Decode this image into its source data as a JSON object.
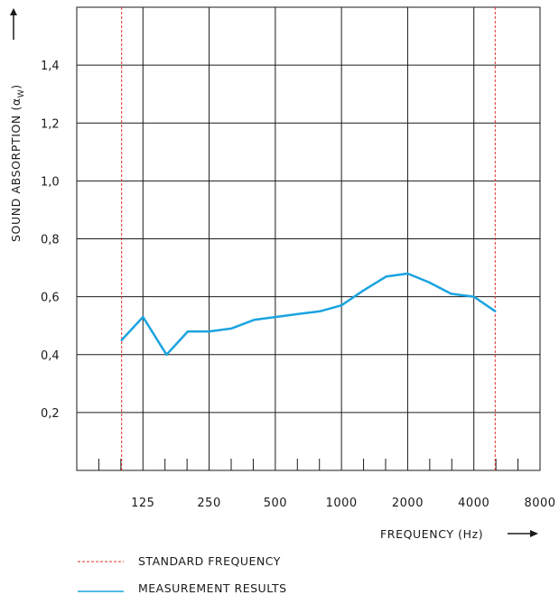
{
  "chart_data": {
    "type": "line",
    "xlabel": "FREQUENCY (Hz)",
    "ylabel": "SOUND ABSORPTION (α",
    "ylabel_sub": "W",
    "ylabel_close": ")",
    "x_scale": "log2",
    "x_tick_labels": [
      "125",
      "250",
      "500",
      "1000",
      "2000",
      "4000",
      "8000"
    ],
    "x_ticks": [
      125,
      250,
      500,
      1000,
      2000,
      4000,
      8000
    ],
    "xlim": [
      62.5,
      8000
    ],
    "y_tick_labels": [
      "0,2",
      "0,4",
      "0,6",
      "0,8",
      "1,0",
      "1,2",
      "1,4"
    ],
    "y_ticks": [
      0.2,
      0.4,
      0.6,
      0.8,
      1.0,
      1.2,
      1.4
    ],
    "ylim": [
      0,
      1.6
    ],
    "grid": true,
    "series": [
      {
        "name": "MEASUREMENT RESULTS",
        "color": "#1aa3e0",
        "x": [
          100,
          125,
          160,
          200,
          250,
          315,
          400,
          500,
          630,
          800,
          1000,
          1250,
          1600,
          2000,
          2500,
          3150,
          4000,
          5000
        ],
        "y": [
          0.45,
          0.53,
          0.4,
          0.48,
          0.48,
          0.49,
          0.52,
          0.53,
          0.54,
          0.55,
          0.57,
          0.62,
          0.67,
          0.68,
          0.65,
          0.61,
          0.6,
          0.55
        ]
      }
    ],
    "reference_lines": {
      "name": "STANDARD FREQUENCY",
      "color": "#e0302a",
      "x": [
        100,
        5000
      ]
    },
    "legend_position": "bottom-left"
  }
}
